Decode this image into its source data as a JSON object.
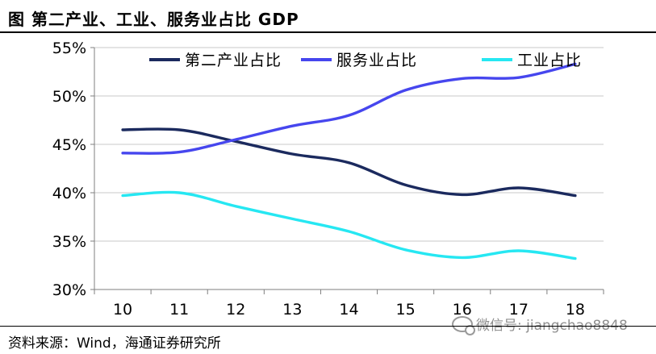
{
  "header": {
    "title": "图    第二产业、工业、服务业占比 GDP"
  },
  "footer": {
    "source": "资料来源：Wind，海通证券研究所"
  },
  "watermark": {
    "text": "微信号: jiangchao8848"
  },
  "colors": {
    "secondary": "#1b2a5e",
    "services": "#4646ee",
    "industry": "#26e7f2"
  },
  "chart_data": {
    "type": "line",
    "categories": [
      "10",
      "11",
      "12",
      "13",
      "14",
      "15",
      "16",
      "17",
      "18"
    ],
    "ylim": [
      30,
      55
    ],
    "yticks": [
      30,
      35,
      40,
      45,
      50,
      55
    ],
    "ytick_labels": [
      "30%",
      "35%",
      "40%",
      "45%",
      "50%",
      "55%"
    ],
    "grid": "horizontal",
    "legend": "top",
    "series": [
      {
        "name": "第二产业占比",
        "color": "#1b2a5e",
        "values": [
          46.5,
          46.5,
          45.3,
          44.0,
          43.1,
          40.8,
          39.8,
          40.5,
          39.7
        ]
      },
      {
        "name": "服务业占比",
        "color": "#4646ee",
        "values": [
          44.1,
          44.2,
          45.5,
          46.9,
          48.0,
          50.6,
          51.8,
          51.9,
          53.3
        ]
      },
      {
        "name": "工业占比",
        "color": "#26e7f2",
        "values": [
          39.7,
          40.0,
          38.6,
          37.3,
          36.0,
          34.1,
          33.3,
          34.0,
          33.2
        ]
      }
    ]
  }
}
